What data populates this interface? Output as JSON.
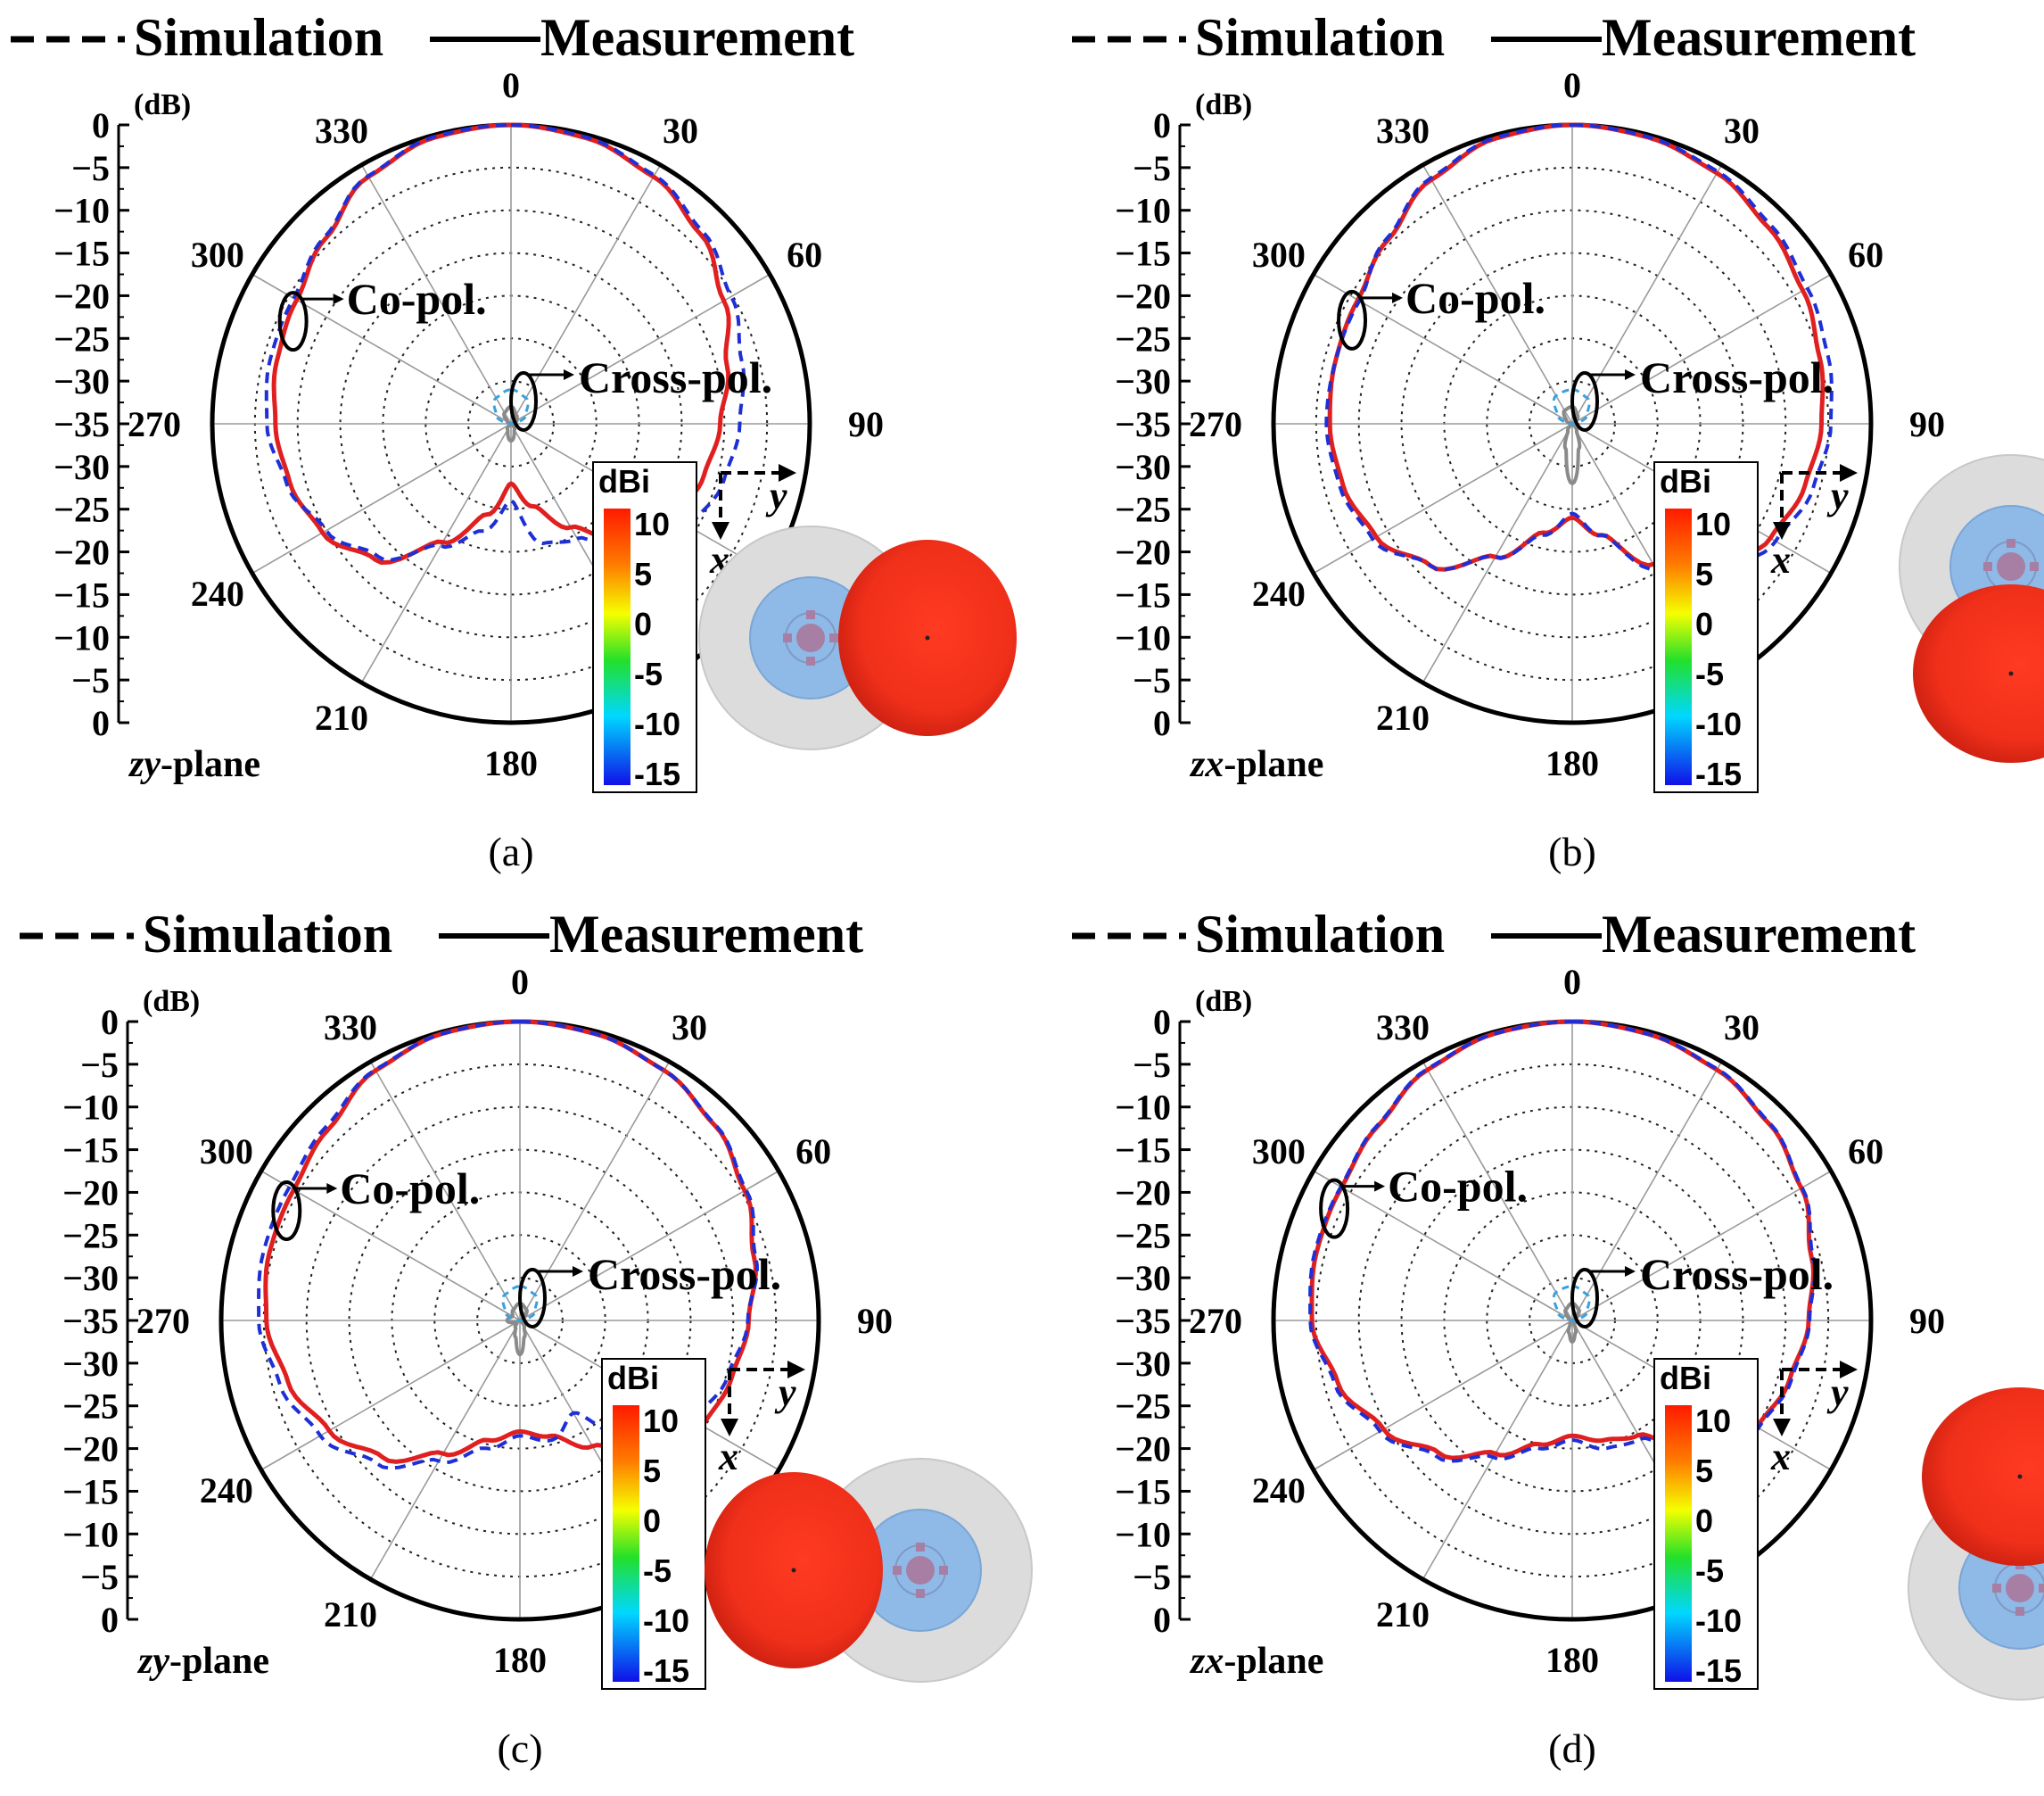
{
  "legend": {
    "simulation": "Simulation",
    "measurement": "Measurement"
  },
  "colors": {
    "simulation": "#1e2fd6",
    "measurement": "#e02020",
    "cross_measurement": "#8a8a8a",
    "cross_simulation": "#3aa0e0",
    "text": "#000000"
  },
  "colorbar": {
    "unit": "dBi",
    "ticks": [
      "10",
      "5",
      "0",
      "-5",
      "-10",
      "-15"
    ]
  },
  "axis_labels": {
    "x": "x",
    "y": "y"
  },
  "chart_data": [
    {
      "panel": "a",
      "caption": "(a)",
      "type": "polar-line",
      "plane_prefix": "zy",
      "plane_suffix": "-plane",
      "unit": "(dB)",
      "radial_ticks": [
        "0",
        "−5",
        "−10",
        "−15",
        "−20",
        "−25",
        "−30",
        "−35"
      ],
      "radial_ticks_lower": [
        "−30",
        "−25",
        "−20",
        "−15",
        "−10",
        "−5",
        "0"
      ],
      "angle_labels": [
        "0",
        "30",
        "60",
        "90",
        "180",
        "210",
        "240",
        "270",
        "300",
        "330"
      ],
      "rlim": [
        -35,
        0
      ],
      "labels": {
        "copol": "Co-pol.",
        "crosspol": "Cross-pol."
      },
      "series": [
        {
          "name": "Measurement",
          "kind": "co",
          "angles": [
            0,
            15,
            30,
            45,
            60,
            75,
            90,
            105,
            120,
            135,
            150,
            165,
            180,
            195,
            210,
            225,
            240,
            255,
            270,
            285,
            300,
            315,
            330,
            345
          ],
          "values": [
            0,
            -0.4,
            -1.6,
            -3.6,
            -6.2,
            -8.8,
            -10.5,
            -11.6,
            -13,
            -16,
            -21,
            -25,
            -28,
            -24,
            -19,
            -12.5,
            -9.5,
            -8.2,
            -7.4,
            -6.6,
            -6,
            -4.3,
            -1.6,
            -0.3
          ]
        },
        {
          "name": "Simulation",
          "kind": "co",
          "angles": [
            0,
            15,
            30,
            45,
            60,
            75,
            90,
            105,
            120,
            135,
            150,
            165,
            180,
            195,
            210,
            225,
            240,
            255,
            270,
            285,
            300,
            315,
            330,
            345
          ],
          "values": [
            0,
            -0.3,
            -1.4,
            -3.2,
            -5.2,
            -7,
            -8.2,
            -9.2,
            -10.8,
            -14,
            -19.5,
            -20.5,
            -26,
            -22,
            -18.5,
            -13,
            -10,
            -7.8,
            -6.4,
            -5.8,
            -5.6,
            -4.1,
            -1.5,
            -0.2
          ]
        },
        {
          "name": "Measurement",
          "kind": "cross",
          "angles": [
            0,
            30,
            60,
            90,
            120,
            150,
            180,
            210,
            240,
            270,
            300,
            330
          ],
          "values": [
            -33,
            -33.8,
            -34.2,
            -35,
            -35,
            -34.2,
            -33,
            -34.2,
            -35,
            -35,
            -34.5,
            -33.5
          ]
        },
        {
          "name": "Simulation",
          "kind": "cross",
          "angles": [
            0,
            30,
            60,
            90,
            120,
            150,
            180,
            210,
            240,
            270,
            300,
            330
          ],
          "values": [
            -31,
            -31.5,
            -33,
            -35,
            -35,
            -35,
            -35,
            -35,
            -35,
            -35,
            -33,
            -31.5
          ]
        }
      ]
    },
    {
      "panel": "b",
      "caption": "(b)",
      "type": "polar-line",
      "plane_prefix": "zx",
      "plane_suffix": "-plane",
      "unit": "(dB)",
      "radial_ticks": [
        "0",
        "−5",
        "−10",
        "−15",
        "−20",
        "−25",
        "−30",
        "−35"
      ],
      "radial_ticks_lower": [
        "−30",
        "−25",
        "−20",
        "−15",
        "−10",
        "−5",
        "0"
      ],
      "angle_labels": [
        "0",
        "30",
        "60",
        "90",
        "180",
        "210",
        "240",
        "270",
        "300",
        "330"
      ],
      "rlim": [
        -35,
        0
      ],
      "labels": {
        "copol": "Co-pol.",
        "crosspol": "Cross-pol."
      },
      "series": [
        {
          "name": "Measurement",
          "kind": "co",
          "angles": [
            0,
            15,
            30,
            45,
            60,
            75,
            90,
            105,
            120,
            135,
            150,
            165,
            180,
            195,
            210,
            225,
            240,
            255,
            270,
            285,
            300,
            315,
            330,
            345
          ],
          "values": [
            0,
            -0.3,
            -1.1,
            -2.5,
            -3.8,
            -5,
            -5.8,
            -6.8,
            -8.2,
            -11.5,
            -16,
            -21.5,
            -24,
            -21.8,
            -17,
            -11.5,
            -8.5,
            -7.2,
            -6.6,
            -6.3,
            -6,
            -4.5,
            -2,
            -0.4
          ]
        },
        {
          "name": "Simulation",
          "kind": "co",
          "angles": [
            0,
            15,
            30,
            45,
            60,
            75,
            90,
            105,
            120,
            135,
            150,
            165,
            180,
            195,
            210,
            225,
            240,
            255,
            270,
            285,
            300,
            315,
            330,
            345
          ],
          "values": [
            0,
            -0.25,
            -0.9,
            -2.1,
            -3.2,
            -4,
            -4.7,
            -5.8,
            -7.5,
            -10.5,
            -15.5,
            -21.5,
            -24.5,
            -21.5,
            -17,
            -11.5,
            -8,
            -6.8,
            -6.2,
            -6.3,
            -6.2,
            -4.3,
            -1.8,
            -0.3
          ]
        },
        {
          "name": "Measurement",
          "kind": "cross",
          "angles": [
            0,
            30,
            60,
            90,
            120,
            150,
            165,
            180,
            195,
            210,
            240,
            270,
            300,
            330
          ],
          "values": [
            -33,
            -33.8,
            -34.5,
            -35,
            -35,
            -34,
            -32,
            -28,
            -32,
            -34,
            -35,
            -35,
            -34.2,
            -33.2
          ]
        },
        {
          "name": "Simulation",
          "kind": "cross",
          "angles": [
            0,
            30,
            60,
            90,
            120,
            150,
            180,
            210,
            240,
            270,
            300,
            330
          ],
          "values": [
            -31,
            -31.5,
            -33,
            -35,
            -35,
            -35,
            -35,
            -35,
            -35,
            -35,
            -33,
            -31.2
          ]
        }
      ]
    },
    {
      "panel": "c",
      "caption": "(c)",
      "type": "polar-line",
      "plane_prefix": "zy",
      "plane_suffix": "-plane",
      "unit": "(dB)",
      "radial_ticks": [
        "0",
        "−5",
        "−10",
        "−15",
        "−20",
        "−25",
        "−30",
        "−35"
      ],
      "radial_ticks_lower": [
        "−30",
        "−25",
        "−20",
        "−15",
        "−10",
        "−5",
        "0"
      ],
      "angle_labels": [
        "0",
        "30",
        "60",
        "90",
        "180",
        "210",
        "240",
        "270",
        "300",
        "330"
      ],
      "rlim": [
        -35,
        0
      ],
      "labels": {
        "copol": "Co-pol.",
        "crosspol": "Cross-pol."
      },
      "series": [
        {
          "name": "Measurement",
          "kind": "co",
          "angles": [
            0,
            15,
            30,
            45,
            60,
            75,
            90,
            105,
            120,
            135,
            150,
            165,
            180,
            195,
            210,
            225,
            240,
            255,
            270,
            285,
            300,
            315,
            330,
            345
          ],
          "values": [
            0,
            -0.3,
            -1.2,
            -2.7,
            -4.6,
            -6.6,
            -8.2,
            -9.3,
            -10.3,
            -13.5,
            -18,
            -21,
            -22,
            -20.5,
            -17,
            -12.3,
            -9.2,
            -6.9,
            -5.3,
            -4.6,
            -4.4,
            -3.3,
            -1.2,
            -0.2
          ]
        },
        {
          "name": "Simulation",
          "kind": "co",
          "angles": [
            0,
            15,
            30,
            45,
            60,
            75,
            90,
            105,
            120,
            135,
            150,
            165,
            180,
            195,
            210,
            225,
            240,
            255,
            270,
            285,
            300,
            315,
            330,
            345
          ],
          "values": [
            0,
            -0.3,
            -1.2,
            -2.6,
            -4.4,
            -6.4,
            -8.3,
            -9.8,
            -11.5,
            -15.5,
            -22.5,
            -20.5,
            -21.5,
            -19.5,
            -16,
            -11.3,
            -8,
            -5.9,
            -4.4,
            -3.9,
            -3.8,
            -2.9,
            -1.1,
            -0.2
          ]
        },
        {
          "name": "Measurement",
          "kind": "cross",
          "angles": [
            0,
            30,
            60,
            90,
            120,
            150,
            165,
            180,
            195,
            210,
            240,
            270,
            300,
            330
          ],
          "values": [
            -33,
            -33.5,
            -34.5,
            -35,
            -35,
            -34,
            -33,
            -31,
            -33,
            -34,
            -34.5,
            -33.5,
            -34,
            -33.5
          ]
        },
        {
          "name": "Simulation",
          "kind": "cross",
          "angles": [
            0,
            30,
            60,
            90,
            120,
            150,
            180,
            210,
            240,
            270,
            300,
            330
          ],
          "values": [
            -31,
            -31.5,
            -33,
            -35,
            -35,
            -35,
            -35,
            -35,
            -35,
            -35,
            -33,
            -31.5
          ]
        }
      ]
    },
    {
      "panel": "d",
      "caption": "(d)",
      "type": "polar-line",
      "plane_prefix": "zx",
      "plane_suffix": "-plane",
      "unit": "(dB)",
      "radial_ticks": [
        "0",
        "−5",
        "−10",
        "−15",
        "−20",
        "−25",
        "−30",
        "−35"
      ],
      "radial_ticks_lower": [
        "−30",
        "−25",
        "−20",
        "−15",
        "−10",
        "−5",
        "0"
      ],
      "angle_labels": [
        "0",
        "30",
        "60",
        "90",
        "180",
        "210",
        "240",
        "270",
        "300",
        "330"
      ],
      "rlim": [
        -35,
        0
      ],
      "labels": {
        "copol": "Co-pol.",
        "crosspol": "Cross-pol."
      },
      "series": [
        {
          "name": "Measurement",
          "kind": "co",
          "angles": [
            0,
            15,
            30,
            45,
            60,
            75,
            90,
            105,
            120,
            135,
            150,
            165,
            180,
            195,
            210,
            225,
            240,
            255,
            270,
            285,
            300,
            315,
            330,
            345
          ],
          "values": [
            0,
            -0.3,
            -1.1,
            -2.4,
            -4,
            -6,
            -7.3,
            -8.6,
            -10,
            -14,
            -19.5,
            -20.5,
            -21.5,
            -20,
            -17,
            -13,
            -9.5,
            -6.6,
            -4.5,
            -4,
            -3.8,
            -2.8,
            -1.1,
            -0.2
          ]
        },
        {
          "name": "Simulation",
          "kind": "co",
          "angles": [
            0,
            15,
            30,
            45,
            60,
            75,
            90,
            105,
            120,
            135,
            150,
            165,
            180,
            195,
            210,
            225,
            240,
            255,
            270,
            285,
            300,
            315,
            330,
            345
          ],
          "values": [
            0,
            -0.3,
            -1,
            -2.3,
            -3.9,
            -5.8,
            -7.2,
            -8.4,
            -9.8,
            -13,
            -19,
            -19.5,
            -21,
            -19.5,
            -16.5,
            -12.5,
            -9,
            -6.2,
            -4.3,
            -3.8,
            -3.7,
            -2.7,
            -1,
            -0.2
          ]
        },
        {
          "name": "Measurement",
          "kind": "cross",
          "angles": [
            0,
            30,
            60,
            90,
            120,
            150,
            165,
            180,
            195,
            210,
            240,
            270,
            300,
            330
          ],
          "values": [
            -33,
            -33.5,
            -34.5,
            -35,
            -35,
            -34.5,
            -33.5,
            -32.5,
            -33.5,
            -34.5,
            -35,
            -35,
            -34.5,
            -33.5
          ]
        },
        {
          "name": "Simulation",
          "kind": "cross",
          "angles": [
            0,
            30,
            60,
            90,
            120,
            150,
            180,
            210,
            240,
            270,
            300,
            330
          ],
          "values": [
            -31,
            -31.5,
            -33,
            -35,
            -35,
            -35,
            -35,
            -35,
            -35,
            -35,
            -33,
            -31.2
          ]
        }
      ]
    }
  ]
}
